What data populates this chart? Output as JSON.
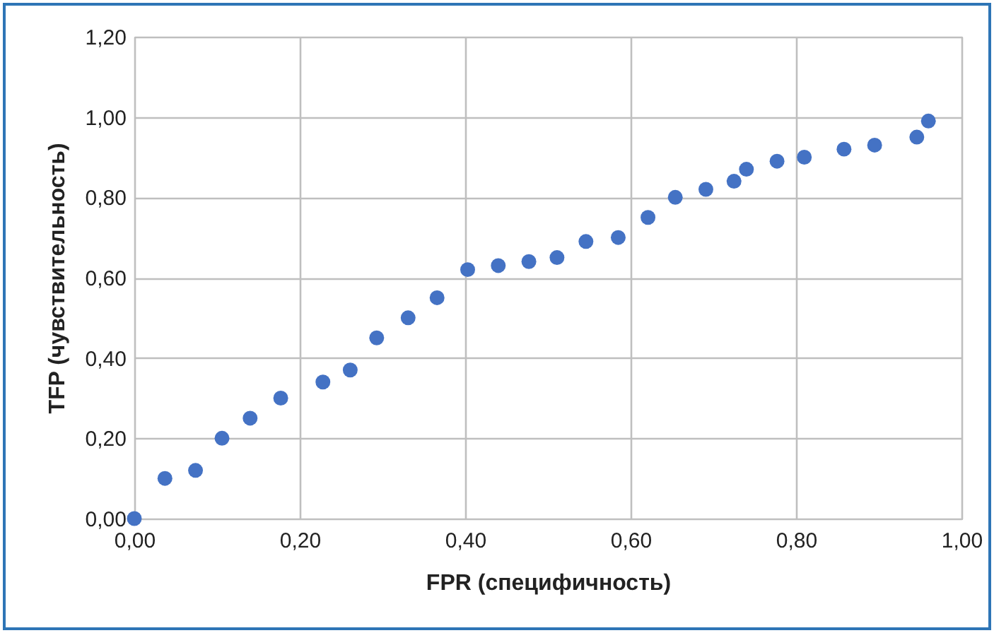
{
  "chart_data": {
    "type": "scatter",
    "xlabel": "FPR (специфичность)",
    "ylabel": "TFP (чувствительность)",
    "x": [
      0,
      0.037,
      0.074,
      0.106,
      0.14,
      0.177,
      0.228,
      0.261,
      0.293,
      0.331,
      0.366,
      0.403,
      0.44,
      0.477,
      0.511,
      0.546,
      0.585,
      0.621,
      0.654,
      0.691,
      0.725,
      0.74,
      0.777,
      0.81,
      0.858,
      0.895,
      0.946,
      0.96
    ],
    "series": [
      {
        "color": "#4472c4",
        "values": [
          0,
          0.1,
          0.12,
          0.2,
          0.25,
          0.3,
          0.34,
          0.37,
          0.45,
          0.5,
          0.55,
          0.62,
          0.63,
          0.64,
          0.65,
          0.69,
          0.7,
          0.75,
          0.8,
          0.82,
          0.84,
          0.87,
          0.89,
          0.9,
          0.92,
          0.93,
          0.95,
          0.99
        ]
      }
    ],
    "xlim": [
      0,
      1
    ],
    "xticks": [
      {
        "value": 0,
        "label": "0,00"
      },
      {
        "value": 0.2,
        "label": "0,20"
      },
      {
        "value": 0.4,
        "label": "0,40"
      },
      {
        "value": 0.6,
        "label": "0,60"
      },
      {
        "value": 0.8,
        "label": "0,80"
      },
      {
        "value": 1,
        "label": "1,00"
      }
    ],
    "ylim": [
      0,
      1.2
    ],
    "yticks": [
      {
        "value": 0,
        "label": "0,00"
      },
      {
        "value": 0.2,
        "label": "0,20"
      },
      {
        "value": 0.4,
        "label": "0,40"
      },
      {
        "value": 0.6,
        "label": "0,60"
      },
      {
        "value": 0.8,
        "label": "0,80"
      },
      {
        "value": 1,
        "label": "1,00"
      },
      {
        "value": 1.2,
        "label": "1,20"
      }
    ],
    "grid": true,
    "marker": "circle"
  }
}
